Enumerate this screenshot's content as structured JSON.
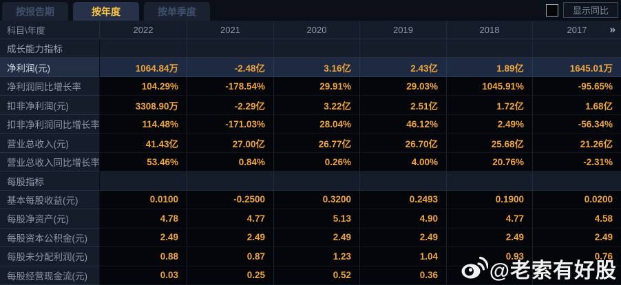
{
  "tabs": [
    {
      "label": "按报告期",
      "active": false
    },
    {
      "label": "按年度",
      "active": true
    },
    {
      "label": "按单季度",
      "active": false
    }
  ],
  "controls": {
    "show_yoy_label": "显示同比",
    "checkbox_checked": false
  },
  "header": {
    "corner_label": "科目\\年度",
    "years": [
      "2022",
      "2021",
      "2020",
      "2019",
      "2018",
      "2017"
    ],
    "more_icon": "»"
  },
  "table": {
    "rows": [
      {
        "type": "section",
        "label": "成长能力指标",
        "values": [
          "",
          "",
          "",
          "",
          "",
          ""
        ]
      },
      {
        "type": "data",
        "highlight": true,
        "label": "净利润(元)",
        "values": [
          "1064.84万",
          "-2.48亿",
          "3.16亿",
          "2.43亿",
          "1.89亿",
          "1645.01万"
        ]
      },
      {
        "type": "data",
        "label": "净利润同比增长率",
        "values": [
          "104.29%",
          "-178.54%",
          "29.91%",
          "29.03%",
          "1045.91%",
          "-95.65%"
        ]
      },
      {
        "type": "data",
        "label": "扣非净利润(元)",
        "values": [
          "3308.90万",
          "-2.29亿",
          "3.22亿",
          "2.51亿",
          "1.72亿",
          "1.68亿"
        ]
      },
      {
        "type": "data",
        "label": "扣非净利润同比增长率",
        "values": [
          "114.48%",
          "-171.03%",
          "28.04%",
          "46.12%",
          "2.49%",
          "-56.34%"
        ]
      },
      {
        "type": "data",
        "label": "营业总收入(元)",
        "values": [
          "41.43亿",
          "27.00亿",
          "26.77亿",
          "26.70亿",
          "25.68亿",
          "21.26亿"
        ]
      },
      {
        "type": "data",
        "label": "营业总收入同比增长率",
        "values": [
          "53.46%",
          "0.84%",
          "0.26%",
          "4.00%",
          "20.76%",
          "-2.31%"
        ]
      },
      {
        "type": "section",
        "label": "每股指标",
        "values": [
          "",
          "",
          "",
          "",
          "",
          ""
        ]
      },
      {
        "type": "data",
        "label": "基本每股收益(元)",
        "values": [
          "0.0100",
          "-0.2500",
          "0.3200",
          "0.2493",
          "0.1900",
          "0.0200"
        ]
      },
      {
        "type": "data",
        "label": "每股净资产(元)",
        "values": [
          "4.78",
          "4.77",
          "5.13",
          "4.90",
          "4.77",
          "4.58"
        ]
      },
      {
        "type": "data",
        "label": "每股资本公积金(元)",
        "values": [
          "2.49",
          "2.49",
          "2.49",
          "2.49",
          "2.49",
          "2.49"
        ]
      },
      {
        "type": "data",
        "label": "每股未分配利润(元)",
        "values": [
          "0.88",
          "0.87",
          "1.23",
          "1.04",
          "0.93",
          "0.76"
        ]
      },
      {
        "type": "data",
        "label": "每股经营现金流(元)",
        "values": [
          "0.03",
          "0.25",
          "0.52",
          "0.36",
          "",
          ""
        ]
      }
    ]
  },
  "watermark": {
    "text": "@老索有好股",
    "icon": "weibo-icon"
  },
  "colors": {
    "value_gold": "#efa53e",
    "active_tab_text": "#ffc53d",
    "highlight_row_bg": "#1d2a42",
    "panel_navy": "#151d2b"
  }
}
